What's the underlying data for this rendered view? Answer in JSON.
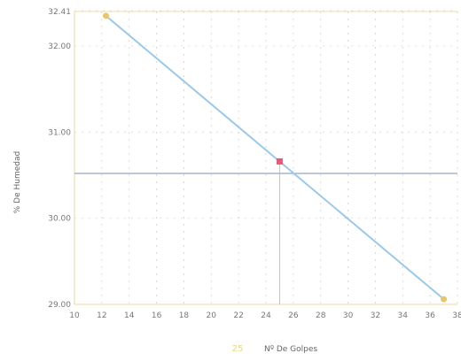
{
  "chart_data": {
    "type": "scatter",
    "title": "",
    "xlabel": "Nº De Golpes",
    "ylabel": "% De Humedad",
    "xlim": [
      10,
      38
    ],
    "ylim": [
      29.0,
      32.4
    ],
    "x_ticks": [
      "10",
      "12",
      "14",
      "16",
      "18",
      "20",
      "22",
      "24",
      "26",
      "28",
      "30",
      "32",
      "34",
      "36",
      "38"
    ],
    "y_ticks": [
      "29.00",
      "30.00",
      "31.00",
      "32.00",
      "32.41"
    ],
    "grid": true,
    "legend": {
      "placement": "bottom-center",
      "symbol": "25"
    },
    "series": [
      {
        "name": "",
        "type": "scatter",
        "color": "#e8c66b",
        "points": [
          {
            "x": 12.3,
            "y": 32.35
          },
          {
            "x": 37.0,
            "y": 29.06
          }
        ]
      },
      {
        "name": "",
        "type": "scatter",
        "color": "#e05a7a",
        "points": [
          {
            "x": 25.0,
            "y": 30.66
          }
        ]
      },
      {
        "name": "",
        "type": "line",
        "color": "#9cc8e8",
        "points": [
          {
            "x": 12.3,
            "y": 32.35
          },
          {
            "x": 37.0,
            "y": 29.06
          }
        ]
      }
    ],
    "reference_lines": [
      {
        "orientation": "horizontal",
        "y": 30.52,
        "color": "#7a8fb0"
      },
      {
        "orientation": "vertical",
        "x": 25.0,
        "color": "#e8b0b0"
      }
    ]
  }
}
